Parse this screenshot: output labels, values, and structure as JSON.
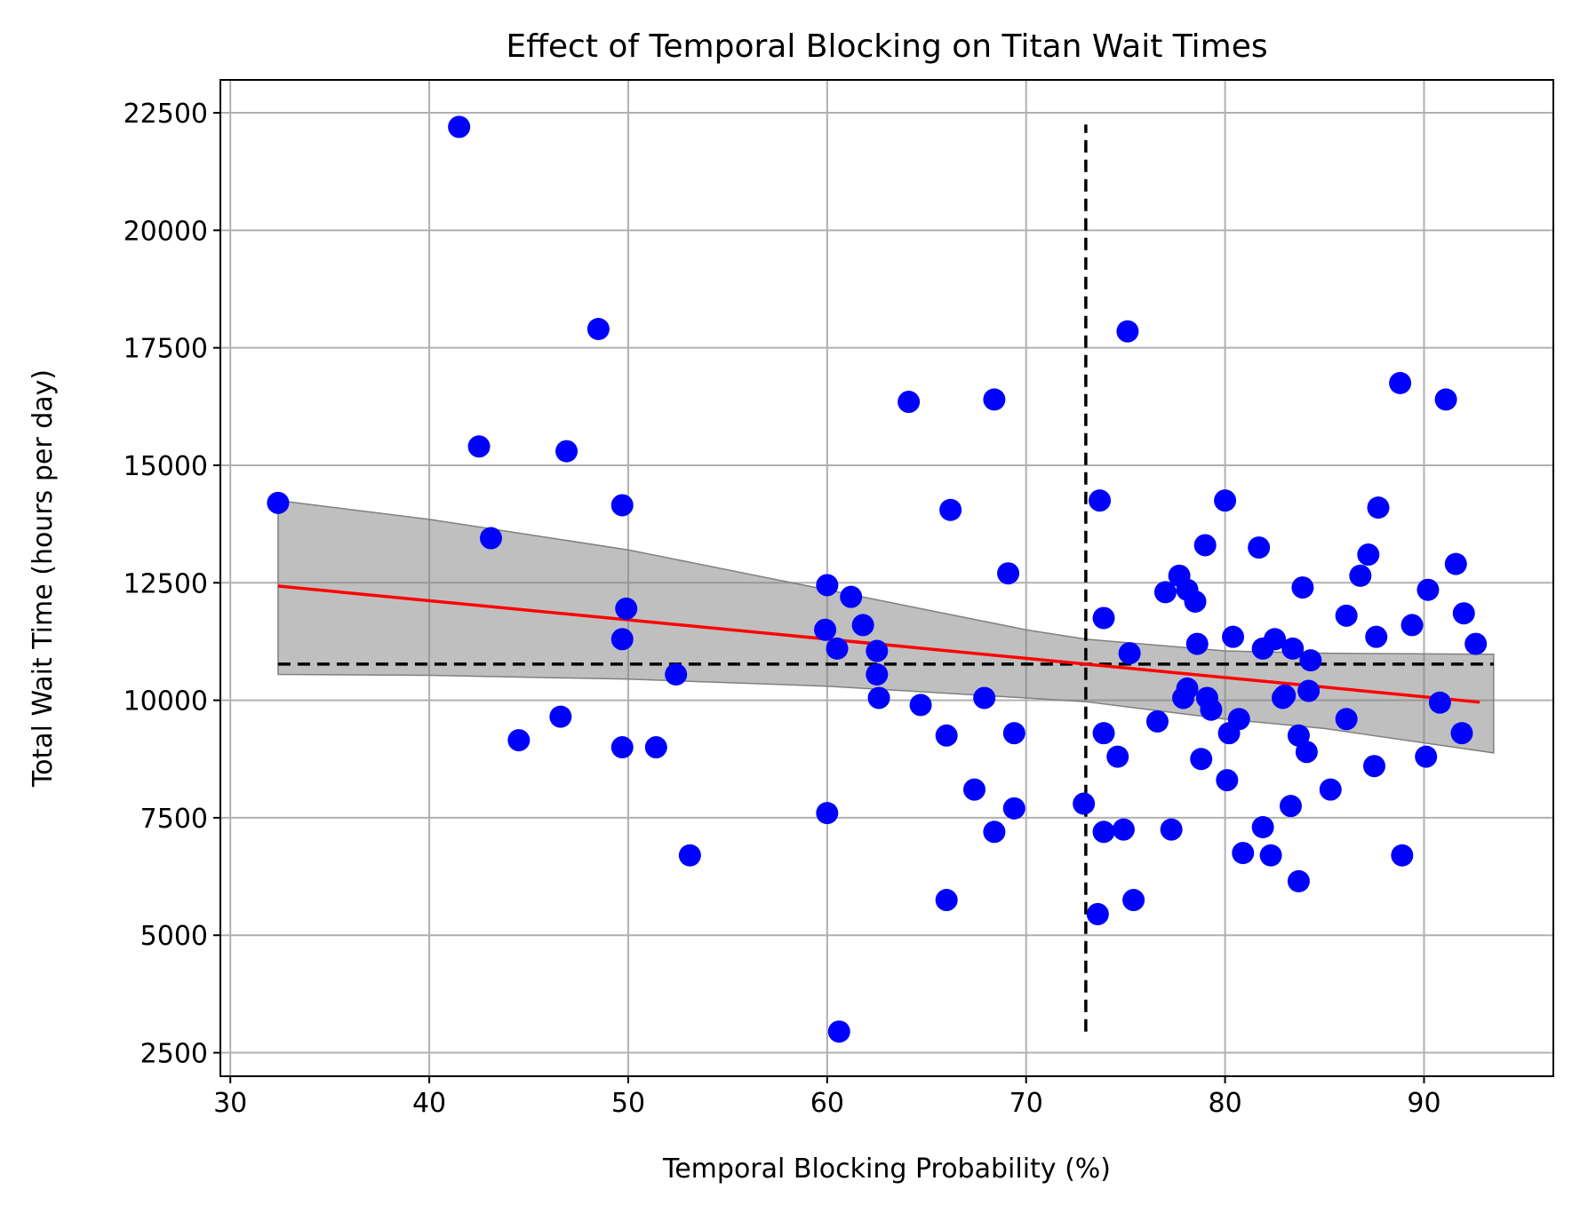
{
  "chart_data": {
    "type": "scatter",
    "title": "Effect of Temporal Blocking on Titan Wait Times",
    "xlabel": "Temporal Blocking Probability (%)",
    "ylabel": "Total Wait Time (hours per day)",
    "xlim": [
      29.5,
      96.5
    ],
    "ylim": [
      2000,
      23200
    ],
    "xticks": [
      30,
      40,
      50,
      60,
      70,
      80,
      90
    ],
    "yticks": [
      2500,
      5000,
      7500,
      10000,
      12500,
      15000,
      17500,
      20000,
      22500
    ],
    "grid": true,
    "colors": {
      "points": "#0000ff",
      "regression": "#ff0000",
      "band": "#808080",
      "reference": "#000000",
      "grid": "#b0b0b0"
    },
    "points": [
      [
        32.4,
        14200
      ],
      [
        41.5,
        22200
      ],
      [
        42.5,
        15400
      ],
      [
        43.1,
        13450
      ],
      [
        44.5,
        9150
      ],
      [
        46.6,
        9650
      ],
      [
        46.9,
        15300
      ],
      [
        48.5,
        17900
      ],
      [
        49.7,
        14150
      ],
      [
        49.7,
        11300
      ],
      [
        49.7,
        9000
      ],
      [
        49.9,
        11950
      ],
      [
        51.4,
        9000
      ],
      [
        52.4,
        10550
      ],
      [
        53.1,
        6700
      ],
      [
        59.9,
        11500
      ],
      [
        60.0,
        12450
      ],
      [
        60.0,
        7600
      ],
      [
        60.5,
        11100
      ],
      [
        60.6,
        2950
      ],
      [
        61.2,
        12200
      ],
      [
        61.8,
        11600
      ],
      [
        62.5,
        11050
      ],
      [
        62.5,
        10550
      ],
      [
        62.6,
        10050
      ],
      [
        64.1,
        16350
      ],
      [
        64.7,
        9900
      ],
      [
        66.0,
        9250
      ],
      [
        66.0,
        5750
      ],
      [
        66.2,
        14050
      ],
      [
        67.4,
        8100
      ],
      [
        67.9,
        10050
      ],
      [
        68.4,
        7200
      ],
      [
        68.4,
        16400
      ],
      [
        69.1,
        12700
      ],
      [
        69.4,
        9300
      ],
      [
        69.4,
        7700
      ],
      [
        72.9,
        7800
      ],
      [
        73.7,
        14250
      ],
      [
        73.6,
        5450
      ],
      [
        73.9,
        11750
      ],
      [
        73.9,
        9300
      ],
      [
        73.9,
        7200
      ],
      [
        74.6,
        8800
      ],
      [
        74.9,
        7250
      ],
      [
        75.1,
        17850
      ],
      [
        75.2,
        11000
      ],
      [
        75.4,
        5750
      ],
      [
        76.6,
        9550
      ],
      [
        77.0,
        12300
      ],
      [
        77.3,
        7250
      ],
      [
        77.7,
        12650
      ],
      [
        77.9,
        10050
      ],
      [
        78.1,
        12350
      ],
      [
        78.1,
        10250
      ],
      [
        78.5,
        12100
      ],
      [
        78.6,
        11200
      ],
      [
        78.8,
        8750
      ],
      [
        79.0,
        13300
      ],
      [
        79.1,
        10050
      ],
      [
        79.3,
        9800
      ],
      [
        80.0,
        14250
      ],
      [
        80.1,
        8300
      ],
      [
        80.2,
        9300
      ],
      [
        80.4,
        11350
      ],
      [
        80.7,
        9600
      ],
      [
        80.9,
        6750
      ],
      [
        81.7,
        13250
      ],
      [
        81.9,
        7300
      ],
      [
        81.9,
        11100
      ],
      [
        82.3,
        6700
      ],
      [
        82.5,
        11300
      ],
      [
        82.9,
        10050
      ],
      [
        83.0,
        10100
      ],
      [
        83.3,
        7750
      ],
      [
        83.4,
        11100
      ],
      [
        83.7,
        9250
      ],
      [
        83.7,
        6150
      ],
      [
        83.9,
        12400
      ],
      [
        84.1,
        8900
      ],
      [
        84.2,
        10200
      ],
      [
        84.3,
        10850
      ],
      [
        85.3,
        8100
      ],
      [
        86.1,
        11800
      ],
      [
        86.1,
        9600
      ],
      [
        86.8,
        12650
      ],
      [
        87.2,
        13100
      ],
      [
        87.5,
        8600
      ],
      [
        87.6,
        11350
      ],
      [
        87.7,
        14100
      ],
      [
        88.8,
        16750
      ],
      [
        88.9,
        6700
      ],
      [
        89.4,
        11600
      ],
      [
        90.1,
        8800
      ],
      [
        90.2,
        12350
      ],
      [
        90.8,
        9950
      ],
      [
        91.1,
        16400
      ],
      [
        91.6,
        12900
      ],
      [
        91.9,
        9300
      ],
      [
        92.0,
        11850
      ],
      [
        92.6,
        11200
      ]
    ],
    "regression": [
      [
        32.4,
        12430
      ],
      [
        92.8,
        9960
      ]
    ],
    "confidence_band": {
      "x": [
        32.4,
        40,
        50,
        60,
        70,
        73,
        80,
        85,
        93.5
      ],
      "upper": [
        14250,
        13850,
        13200,
        12350,
        11500,
        11300,
        11050,
        11000,
        10980
      ],
      "lower": [
        10550,
        10530,
        10450,
        10300,
        10050,
        9970,
        9600,
        9400,
        8880
      ]
    },
    "reference_lines": {
      "horizontal": {
        "y": 10770,
        "x_from": 32.4,
        "x_to": 93.5
      },
      "vertical": {
        "x": 73.0,
        "y_from": 2950,
        "y_to": 22250
      }
    }
  }
}
